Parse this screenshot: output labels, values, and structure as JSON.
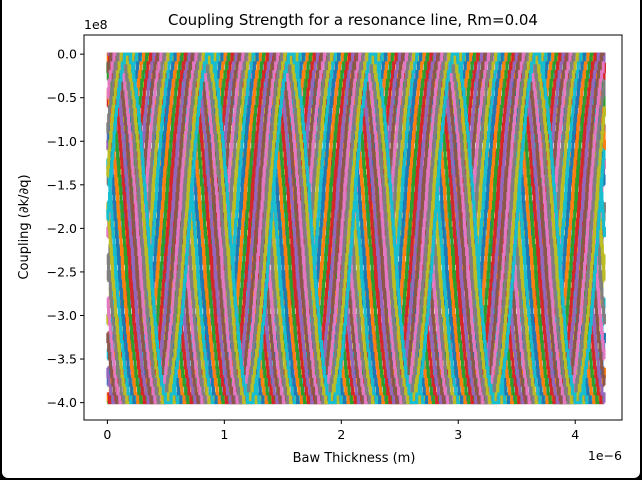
{
  "chart_data": {
    "type": "line",
    "title": "Coupling Strength for a resonance line, Rm=0.04",
    "xlabel": "Baw Thickness (m)",
    "ylabel": "Coupling (∂k/∂q)",
    "x_offset_label": "1e−6",
    "y_offset_label": "1e8",
    "x_scale": 1e-06,
    "y_scale": 100000000.0,
    "xlim": [
      -0.2,
      4.4
    ],
    "ylim": [
      -4.2,
      0.22
    ],
    "x_ticks": [
      {
        "value": 0,
        "label": "0"
      },
      {
        "value": 1,
        "label": "1"
      },
      {
        "value": 2,
        "label": "2"
      },
      {
        "value": 3,
        "label": "3"
      },
      {
        "value": 4,
        "label": "4"
      }
    ],
    "y_ticks": [
      {
        "value": 0.0,
        "label": "0.0"
      },
      {
        "value": -0.5,
        "label": "−0.5"
      },
      {
        "value": -1.0,
        "label": "−1.0"
      },
      {
        "value": -1.5,
        "label": "−1.5"
      },
      {
        "value": -2.0,
        "label": "−2.0"
      },
      {
        "value": -2.5,
        "label": "−2.5"
      },
      {
        "value": -3.0,
        "label": "−3.0"
      },
      {
        "value": -3.5,
        "label": "−3.5"
      },
      {
        "value": -4.0,
        "label": "−4.0"
      }
    ],
    "grid": false,
    "legend": "none",
    "x_range": [
      0,
      4.25
    ],
    "period": 0.7,
    "amplitude": 2.0,
    "center": -2.0,
    "plateau": -1.5,
    "quantization_step": 0.02,
    "colors": [
      "#1f77b4",
      "#ff7f0e",
      "#2ca02c",
      "#d62728",
      "#9467bd",
      "#8c564b",
      "#e377c2",
      "#7f7f7f",
      "#bcbd22",
      "#17becf"
    ],
    "series": [
      {
        "phase": 0.0
      },
      {
        "phase": 0.03
      },
      {
        "phase": 0.06
      },
      {
        "phase": 0.09
      },
      {
        "phase": 0.12
      },
      {
        "phase": 0.15
      },
      {
        "phase": 0.18
      },
      {
        "phase": 0.21
      },
      {
        "phase": 0.24
      },
      {
        "phase": 0.27
      },
      {
        "phase": 0.3
      },
      {
        "phase": 0.33
      },
      {
        "phase": 0.36
      },
      {
        "phase": 0.39
      },
      {
        "phase": 0.42
      },
      {
        "phase": 0.45
      },
      {
        "phase": 0.48
      },
      {
        "phase": 0.51
      },
      {
        "phase": 0.54
      },
      {
        "phase": 0.57
      },
      {
        "phase": 0.6
      },
      {
        "phase": 0.63
      },
      {
        "phase": 0.66
      },
      {
        "phase": 0.69
      },
      {
        "phase": 0.72
      },
      {
        "phase": 0.75
      },
      {
        "phase": 0.78
      },
      {
        "phase": 0.81
      },
      {
        "phase": 0.84
      },
      {
        "phase": 0.87
      }
    ]
  }
}
